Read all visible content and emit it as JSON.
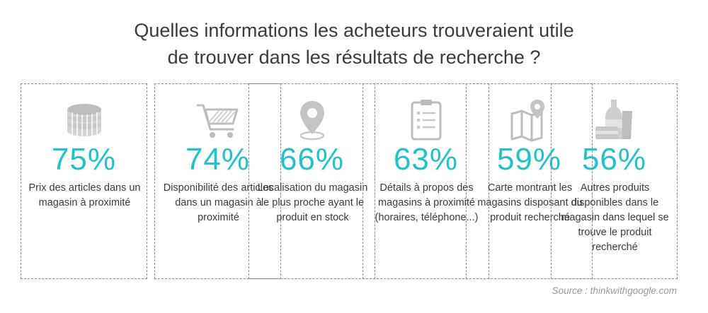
{
  "chart_data": {
    "type": "table",
    "title_lines": [
      "Quelles informations les acheteurs trouveraient utile",
      "de trouver dans les résultats de recherche ?"
    ],
    "categories": [
      "Prix des articles dans un magasin à proximité",
      "Disponibilité des articles dans un magasin à proximité",
      "Localisation du magasin le plus proche ayant le produit en stock",
      "Détails à propos des magasins à proximité (horaires, téléphone...)",
      "Carte montrant les magasins disposant du produit recherché",
      "Autres produits disponibles dans le magasin dans lequel se trouve le produit recherché"
    ],
    "values": [
      75,
      74,
      66,
      63,
      59,
      56
    ],
    "value_labels": [
      "75%",
      "74%",
      "66%",
      "63%",
      "59%",
      "56%"
    ],
    "unit": "%",
    "accent_color": "#22c1cc",
    "icons": [
      "coins-icon",
      "shopping-cart-icon",
      "location-pin-icon",
      "checklist-icon",
      "map-icon",
      "products-icon"
    ]
  },
  "source": "Source : thinkwithgoogle.com"
}
